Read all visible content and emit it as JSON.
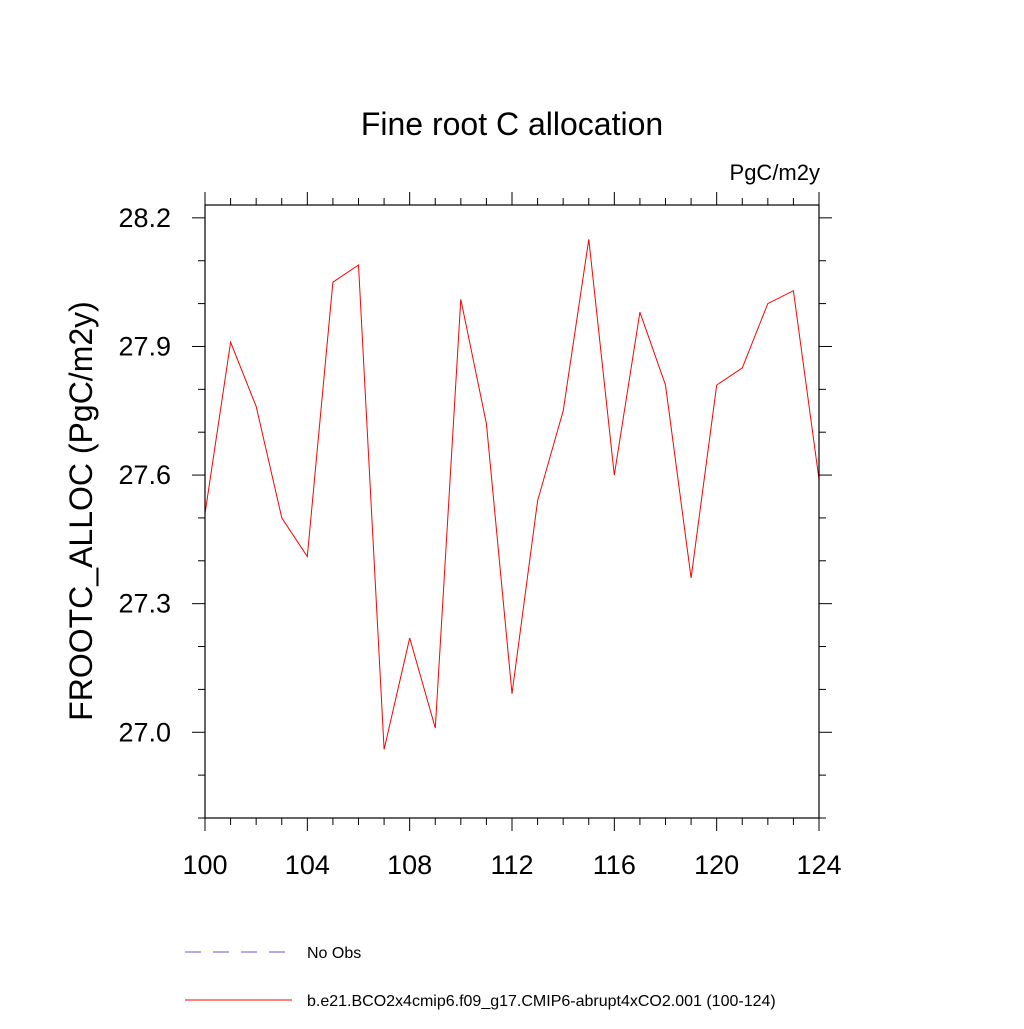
{
  "chart_data": {
    "type": "line",
    "title": "Fine root C allocation",
    "units_label": "PgC/m2y",
    "xlabel": "",
    "ylabel": "FROOTC_ALLOC  (PgC/m2y)",
    "xlim": [
      100,
      124
    ],
    "ylim": [
      26.8,
      28.23
    ],
    "x_ticks": [
      100,
      104,
      108,
      112,
      116,
      120,
      124
    ],
    "x_tick_labels": [
      "100",
      "104",
      "108",
      "112",
      "116",
      "120",
      "124"
    ],
    "x_minor_step": 1,
    "y_ticks": [
      27.0,
      27.3,
      27.6,
      27.9,
      28.2
    ],
    "y_tick_labels": [
      "27.0",
      "27.3",
      "27.6",
      "27.9",
      "28.2"
    ],
    "y_minor_step": 0.1,
    "grid": false,
    "legend": {
      "placement": "bottom"
    },
    "series": [
      {
        "name": "No Obs",
        "color": "#6a5acd",
        "dash": true,
        "values": []
      },
      {
        "name": "b.e21.BCO2x4cmip6.f09_g17.CMIP6-abrupt4xCO2.001 (100-124)",
        "color": "#ff0000",
        "dash": false,
        "x": [
          100,
          101,
          102,
          103,
          104,
          105,
          106,
          107,
          108,
          109,
          110,
          111,
          112,
          113,
          114,
          115,
          116,
          117,
          118,
          119,
          120,
          121,
          122,
          123,
          124
        ],
        "values": [
          27.51,
          27.91,
          27.76,
          27.5,
          27.41,
          28.05,
          28.09,
          26.96,
          27.22,
          27.01,
          28.01,
          27.72,
          27.09,
          27.54,
          27.75,
          28.15,
          27.6,
          27.98,
          27.81,
          27.36,
          27.81,
          27.85,
          28.0,
          28.03,
          27.59
        ]
      }
    ]
  }
}
